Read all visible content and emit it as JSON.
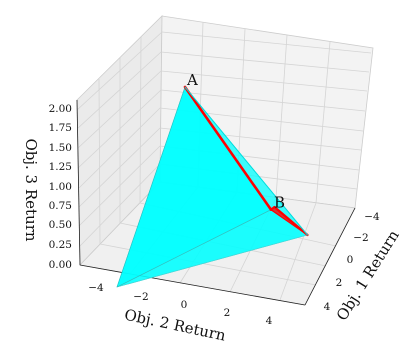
{
  "chart_data": {
    "type": "3d-polygon",
    "title": "",
    "xlabel": "Obj. 1 Return",
    "ylabel": "Obj. 2 Return",
    "zlabel": "Obj. 3 Return",
    "x_ticks": [
      "−4",
      "−2",
      "0",
      "2",
      "4"
    ],
    "y_ticks": [
      "−4",
      "−2",
      "0",
      "2",
      "4"
    ],
    "z_ticks": [
      "0.00",
      "0.25",
      "0.50",
      "0.75",
      "1.00",
      "1.25",
      "1.50",
      "1.75",
      "2.00"
    ],
    "xlim": [
      -5,
      5
    ],
    "ylim": [
      -5,
      5
    ],
    "zlim": [
      0,
      2
    ],
    "grid": true,
    "vertices": {
      "A": [
        0,
        0,
        2
      ],
      "B": [
        0,
        4,
        0.65
      ],
      "P1": [
        -5,
        -2,
        0
      ],
      "P2": [
        5,
        3,
        0
      ],
      "P3": [
        3,
        5,
        0
      ]
    },
    "point_labels": [
      "A",
      "B"
    ],
    "colors": {
      "cyan_face": "#00ffff",
      "red_face": "#ee1111",
      "red_edge": "#ff0000",
      "pane": "#f2f2f2",
      "grid": "#d6d6d6"
    }
  }
}
